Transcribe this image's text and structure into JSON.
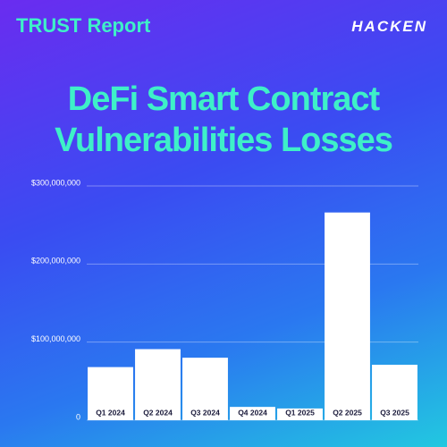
{
  "header": {
    "report": "TRUST Report",
    "logo": "HACKEN"
  },
  "chart_data": {
    "type": "bar",
    "title": "DeFi Smart Contract Vulnerabilities Losses",
    "categories": [
      "Q1 2024",
      "Q2 2024",
      "Q3 2024",
      "Q4 2024",
      "Q1 2025",
      "Q2 2025",
      "Q3 2025"
    ],
    "values": [
      68000000,
      91000000,
      80000000,
      17000000,
      15000000,
      266000000,
      71000000
    ],
    "color": "#ffffff",
    "ylim": [
      0,
      300000000
    ],
    "yticks": [
      0,
      {
        "value": 100000000,
        "label": "$100,000,000"
      },
      {
        "value": 200000000,
        "label": "$200,000,000"
      },
      {
        "value": 300000000,
        "label": "$300,000,000"
      }
    ],
    "grid": true
  }
}
